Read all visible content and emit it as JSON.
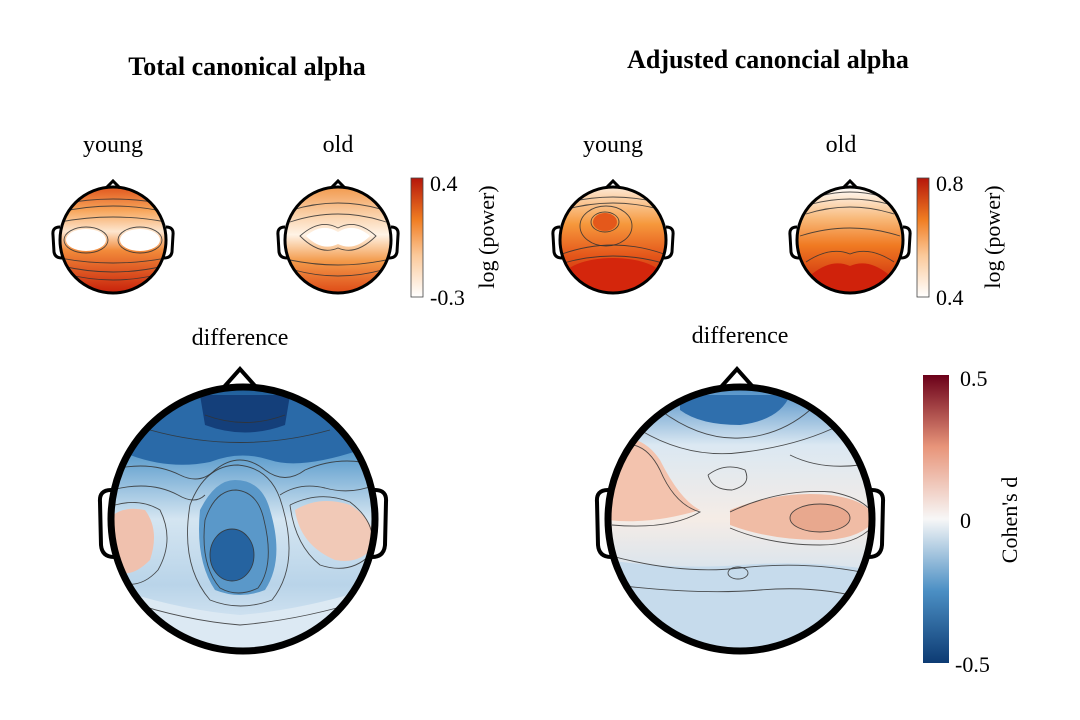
{
  "left_panel": {
    "title": "Total canonical alpha",
    "young_label": "young",
    "old_label": "old",
    "difference_label": "difference",
    "colorbar": {
      "max": "0.4",
      "min": "-0.3",
      "label": "log (power)"
    }
  },
  "right_panel": {
    "title": "Adjusted canoncial alpha",
    "young_label": "young",
    "old_label": "old",
    "difference_label": "difference",
    "colorbar": {
      "max": "0.8",
      "min": "0.4",
      "label": "log (power)"
    }
  },
  "diff_colorbar": {
    "max": "0.5",
    "mid": "0",
    "min": "-0.5",
    "label": "Cohen's d"
  },
  "colors": {
    "power_high": "#c8200a",
    "power_mid": "#f08a2c",
    "power_low": "#ffffff",
    "diff_high": "#6b0019",
    "diff_zero": "#f7f7f7",
    "diff_low": "#0d3b73"
  }
}
